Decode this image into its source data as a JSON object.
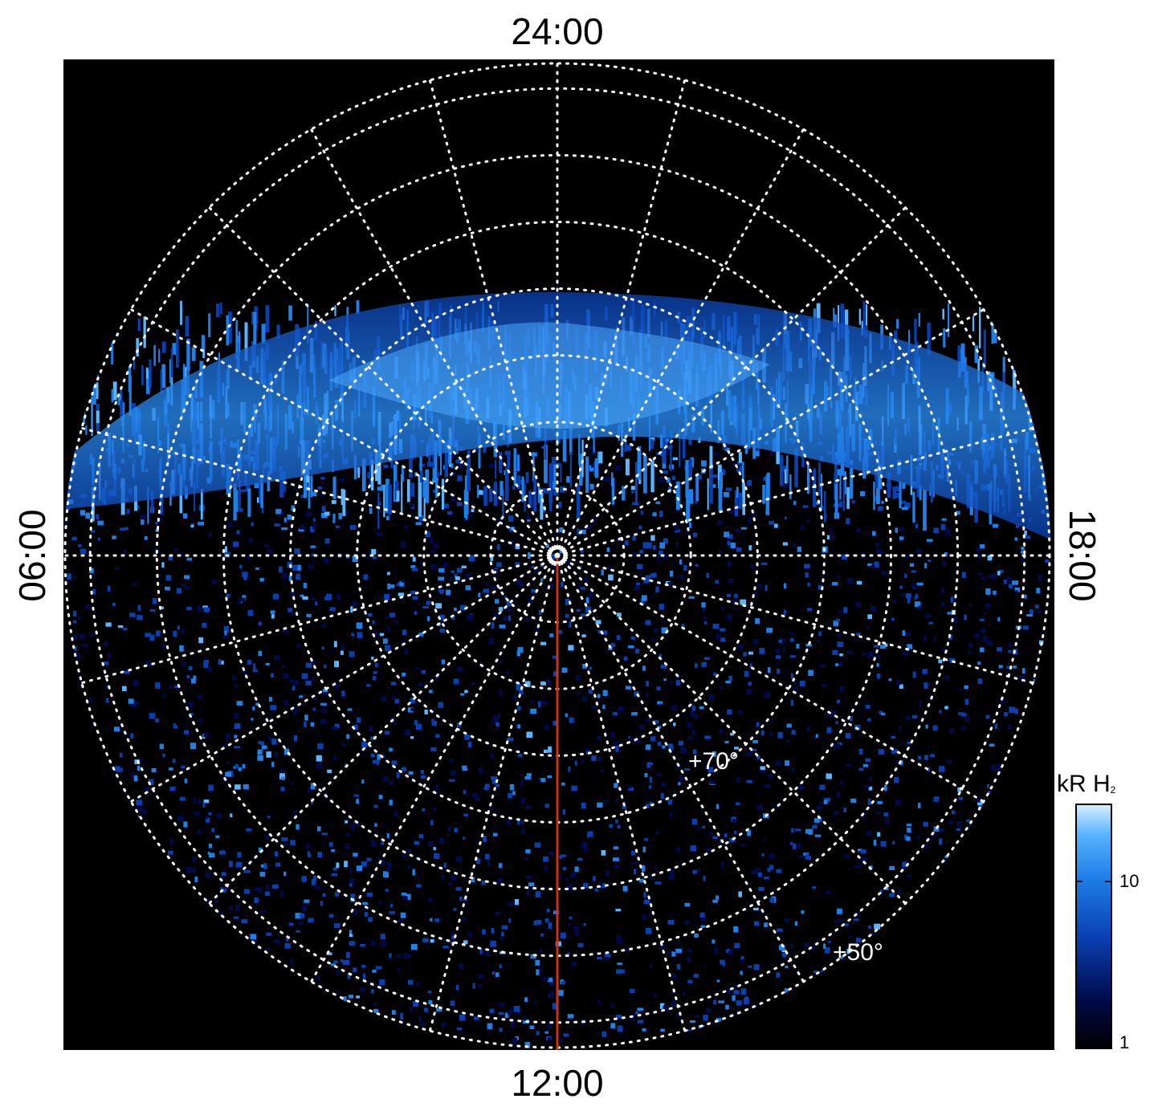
{
  "local_time_labels": {
    "top": "24:00",
    "bottom": "12:00",
    "left": "06:00",
    "right": "18:00"
  },
  "latitude_labels": [
    "+70°",
    "+50°"
  ],
  "colorbar": {
    "title_main": "kR H",
    "title_sub": "2",
    "ticks": [
      "10",
      "1"
    ],
    "scale": "log",
    "range": [
      1,
      25
    ],
    "colors": [
      "#000000",
      "#000a4a",
      "#0a3fb0",
      "#1e7fe8",
      "#5ab4ff",
      "#d8f0ff"
    ]
  },
  "map_data": {
    "projection": "polar",
    "center_latitude": 90,
    "grid_latitudes": [
      90,
      80,
      70,
      60,
      50,
      40,
      30,
      20
    ],
    "grid_local_times_step_hours": 1,
    "marker_line_local_time": "12:00",
    "marker_line_color": "#d03010",
    "grid_color": "#ffffff"
  }
}
